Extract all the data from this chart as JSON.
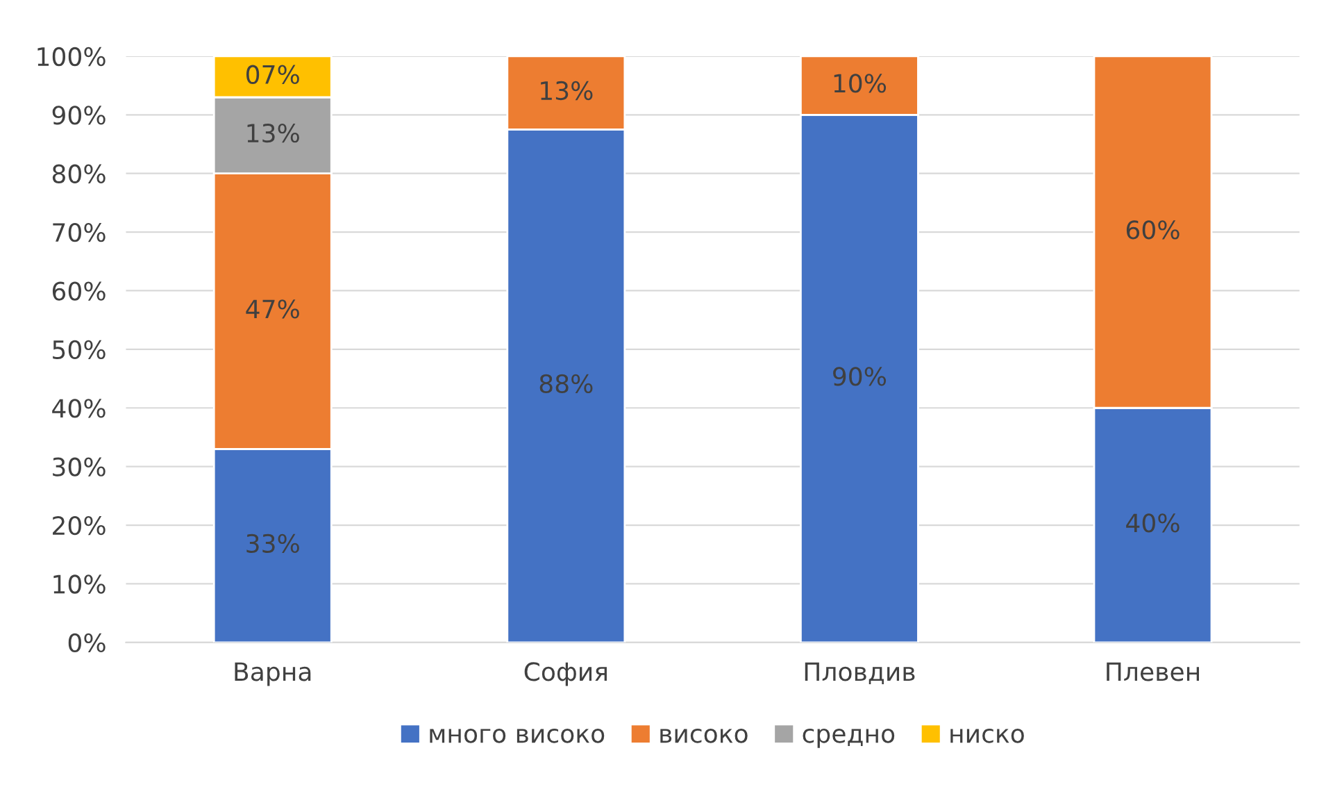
{
  "chart_data": {
    "type": "bar",
    "stacked": true,
    "categories": [
      "Варна",
      "София",
      "Пловдив",
      "Плевен"
    ],
    "series": [
      {
        "name": "много високо",
        "color": "#4472c4",
        "values": [
          33,
          87.5,
          90,
          40
        ],
        "value_labels": [
          "33%",
          "88%",
          "90%",
          "40%"
        ]
      },
      {
        "name": "високо",
        "color": "#ed7d31",
        "values": [
          47,
          12.5,
          10,
          60
        ],
        "value_labels": [
          "47%",
          "13%",
          "10%",
          "60%"
        ]
      },
      {
        "name": "средно",
        "color": "#a5a5a5",
        "values": [
          13,
          null,
          null,
          null
        ],
        "value_labels": [
          "13%",
          null,
          null,
          null
        ]
      },
      {
        "name": "ниско",
        "color": "#ffc000",
        "values": [
          7,
          null,
          null,
          null
        ],
        "value_labels": [
          "07%",
          null,
          null,
          null
        ]
      }
    ],
    "ylim": [
      0,
      100
    ],
    "yticks": [
      {
        "value": 0,
        "label": "0%"
      },
      {
        "value": 10,
        "label": "10%"
      },
      {
        "value": 20,
        "label": "20%"
      },
      {
        "value": 30,
        "label": "30%"
      },
      {
        "value": 40,
        "label": "40%"
      },
      {
        "value": 50,
        "label": "50%"
      },
      {
        "value": 60,
        "label": "60%"
      },
      {
        "value": 70,
        "label": "70%"
      },
      {
        "value": 80,
        "label": "80%"
      },
      {
        "value": 90,
        "label": "90%"
      },
      {
        "value": 100,
        "label": "100%"
      }
    ],
    "grid": "y",
    "legend": "bottom"
  }
}
